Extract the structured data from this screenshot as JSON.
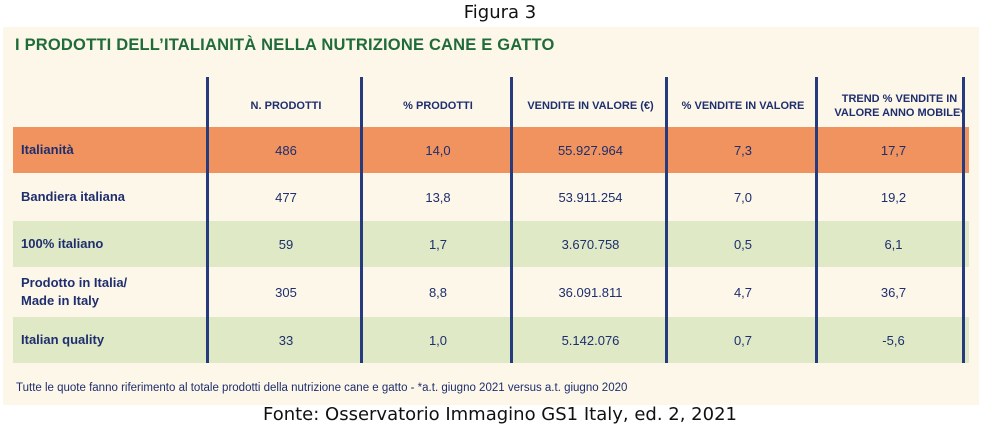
{
  "figure_label": "Figura 3",
  "title": "I PRODOTTI DELL’ITALIANITÀ NELLA NUTRIZIONE CANE E GATTO",
  "columns": {
    "c1": "N. PRODOTTI",
    "c2": "% PRODOTTI",
    "c3": "VENDITE IN VALORE (€)",
    "c4": "% VENDITE IN VALORE",
    "c5": "TREND % VENDITE IN VALORE ANNO MOBILE*"
  },
  "rows": [
    {
      "label": "Italianità",
      "n": "486",
      "pct": "14,0",
      "value": "55.927.964",
      "pct_value": "7,3",
      "trend": "17,7"
    },
    {
      "label": "Bandiera italiana",
      "n": "477",
      "pct": "13,8",
      "value": "53.911.254",
      "pct_value": "7,0",
      "trend": "19,2"
    },
    {
      "label": "100% italiano",
      "n": "59",
      "pct": "1,7",
      "value": "3.670.758",
      "pct_value": "0,5",
      "trend": "6,1"
    },
    {
      "label": "Prodotto in Italia/ Made in Italy",
      "n": "305",
      "pct": "8,8",
      "value": "36.091.811",
      "pct_value": "4,7",
      "trend": "36,7"
    },
    {
      "label": "Italian quality",
      "n": "33",
      "pct": "1,0",
      "value": "5.142.076",
      "pct_value": "0,7",
      "trend": "-5,6"
    }
  ],
  "colors": {
    "highlight_row": "#f0935e",
    "green_row": "#dfe9c6",
    "cream_row": "#fdf7e9",
    "text_navy": "#1e2e6e",
    "title_green": "#1f6b3a"
  },
  "note": "Tutte le quote fanno riferimento al totale prodotti della nutrizione cane e gatto - *a.t. giugno 2021 versus a.t. giugno 2020",
  "source": "Fonte: Osservatorio Immagino GS1 Italy, ed. 2, 2021"
}
